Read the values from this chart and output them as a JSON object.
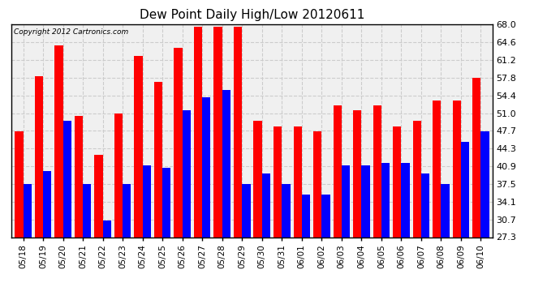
{
  "title": "Dew Point Daily High/Low 20120611",
  "copyright": "Copyright 2012 Cartronics.com",
  "dates": [
    "05/18",
    "05/19",
    "05/20",
    "05/21",
    "05/22",
    "05/23",
    "05/24",
    "05/25",
    "05/26",
    "05/27",
    "05/28",
    "05/29",
    "05/30",
    "05/31",
    "06/01",
    "06/02",
    "06/03",
    "06/04",
    "06/05",
    "06/06",
    "06/07",
    "06/08",
    "06/09",
    "06/10"
  ],
  "highs": [
    47.5,
    58.0,
    64.0,
    50.5,
    43.0,
    51.0,
    62.0,
    57.0,
    63.5,
    67.5,
    67.5,
    67.5,
    49.5,
    48.5,
    48.5,
    47.5,
    52.5,
    51.5,
    52.5,
    48.5,
    49.5,
    53.5,
    53.5,
    57.8
  ],
  "lows": [
    37.5,
    40.0,
    49.5,
    37.5,
    30.5,
    37.5,
    41.0,
    40.5,
    51.5,
    54.0,
    55.5,
    37.5,
    39.5,
    37.5,
    35.5,
    35.5,
    41.0,
    41.0,
    41.5,
    41.5,
    39.5,
    37.5,
    45.5,
    47.5
  ],
  "high_color": "#ff0000",
  "low_color": "#0000ff",
  "bg_color": "#ffffff",
  "plot_bg_color": "#f0f0f0",
  "grid_color": "#cccccc",
  "yticks": [
    27.3,
    30.7,
    34.1,
    37.5,
    40.9,
    44.3,
    47.7,
    51.0,
    54.4,
    57.8,
    61.2,
    64.6,
    68.0
  ],
  "ymin": 27.3,
  "ymax": 68.0,
  "bar_width": 0.42
}
